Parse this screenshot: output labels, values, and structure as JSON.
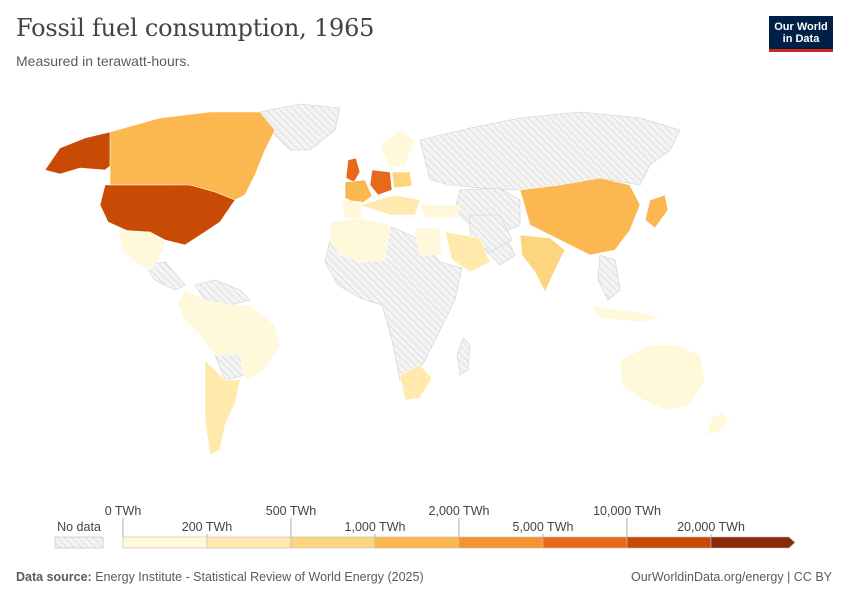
{
  "header": {
    "title": "Fossil fuel consumption, 1965",
    "subtitle": "Measured in terawatt-hours."
  },
  "logo": {
    "line1": "Our World",
    "line2": "in Data"
  },
  "legend": {
    "no_data_label": "No data",
    "upper_labels": [
      "0 TWh",
      "500 TWh",
      "2,000 TWh",
      "10,000 TWh"
    ],
    "lower_labels": [
      "200 TWh",
      "1,000 TWh",
      "5,000 TWh",
      "20,000 TWh"
    ],
    "bins": [
      {
        "range": "0–200 TWh",
        "color": "#fff8da"
      },
      {
        "range": "200–500 TWh",
        "color": "#ffe9ad"
      },
      {
        "range": "500–1,000 TWh",
        "color": "#fed57f"
      },
      {
        "range": "1,000–2,000 TWh",
        "color": "#fbb850"
      },
      {
        "range": "2,000–5,000 TWh",
        "color": "#f59331"
      },
      {
        "range": "5,000–10,000 TWh",
        "color": "#e8681c"
      },
      {
        "range": "10,000–20,000 TWh",
        "color": "#c94a04"
      },
      {
        "range": "20,000+ TWh",
        "color": "#8a2a0a"
      }
    ]
  },
  "map_regions": [
    {
      "name": "Alaska",
      "bin": 6
    },
    {
      "name": "Canada",
      "bin": 3
    },
    {
      "name": "United States",
      "bin": 6
    },
    {
      "name": "Mexico",
      "bin": 0
    },
    {
      "name": "Brazil",
      "bin": 0
    },
    {
      "name": "Argentina",
      "bin": 1
    },
    {
      "name": "United Kingdom",
      "bin": 5
    },
    {
      "name": "Germany",
      "bin": 5
    },
    {
      "name": "France",
      "bin": 3
    },
    {
      "name": "Poland",
      "bin": 2
    },
    {
      "name": "China",
      "bin": 3
    },
    {
      "name": "India",
      "bin": 2
    },
    {
      "name": "Japan",
      "bin": 3
    },
    {
      "name": "Australia",
      "bin": 0
    },
    {
      "name": "South Africa",
      "bin": 1
    },
    {
      "name": "Saudi Arabia",
      "bin": 1
    }
  ],
  "footer": {
    "source_label": "Data source:",
    "source_text": "Energy Institute - Statistical Review of World Energy (2025)",
    "right_text": "OurWorldinData.org/energy | CC BY"
  }
}
